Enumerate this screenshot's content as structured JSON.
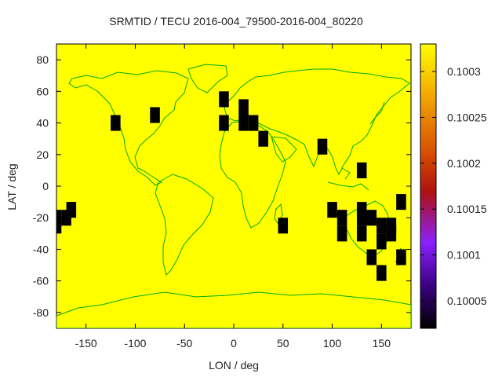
{
  "chart_data": {
    "type": "heatmap",
    "title": "SRMTID / TECU 2016-004_79500-2016-004_80220",
    "xlabel": "LON / deg",
    "ylabel": "LAT / deg",
    "xlim": [
      -180,
      180
    ],
    "ylim": [
      -90,
      90
    ],
    "xticks": [
      -150,
      -100,
      -50,
      0,
      50,
      100,
      150
    ],
    "yticks": [
      -80,
      -60,
      -40,
      -20,
      0,
      20,
      40,
      60,
      80
    ],
    "background_value": 0.10033,
    "colorbar": {
      "min": 0.10002,
      "max": 0.10033,
      "ticks": [
        "0.10005",
        "0.1001",
        "0.10015",
        "0.1002",
        "0.10025",
        "0.1003"
      ],
      "palette": [
        "#000000",
        "#5a00b4",
        "#a040ff",
        "#c03000",
        "#e06000",
        "#f0a000",
        "#ffff00"
      ]
    },
    "cell_size_deg": 10,
    "cells_value": 0.10002,
    "cells": [
      [
        -180,
        -20
      ],
      [
        -170,
        -20
      ],
      [
        -180,
        -25
      ],
      [
        -165,
        -15
      ],
      [
        -120,
        40
      ],
      [
        -80,
        45
      ],
      [
        -10,
        55
      ],
      [
        -10,
        40
      ],
      [
        10,
        50
      ],
      [
        10,
        40
      ],
      [
        20,
        40
      ],
      [
        30,
        30
      ],
      [
        50,
        -25
      ],
      [
        90,
        25
      ],
      [
        100,
        -15
      ],
      [
        110,
        -20
      ],
      [
        110,
        -30
      ],
      [
        130,
        10
      ],
      [
        130,
        -20
      ],
      [
        130,
        -30
      ],
      [
        130,
        -15
      ],
      [
        140,
        -20
      ],
      [
        140,
        -45
      ],
      [
        150,
        -25
      ],
      [
        150,
        -35
      ],
      [
        150,
        -55
      ],
      [
        160,
        -25
      ],
      [
        160,
        -30
      ],
      [
        170,
        -10
      ],
      [
        170,
        -45
      ]
    ],
    "grid": false,
    "map_outline_color": "#00aa00"
  }
}
